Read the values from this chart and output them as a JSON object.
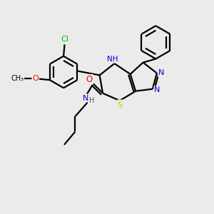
{
  "bg_color": "#ebebeb",
  "line_color": "#000000",
  "atom_colors": {
    "N": "#0000cc",
    "S": "#cccc00",
    "O": "#ff0000",
    "Cl": "#00bb00",
    "C": "#000000",
    "H": "#555555"
  },
  "lw": 1.6
}
